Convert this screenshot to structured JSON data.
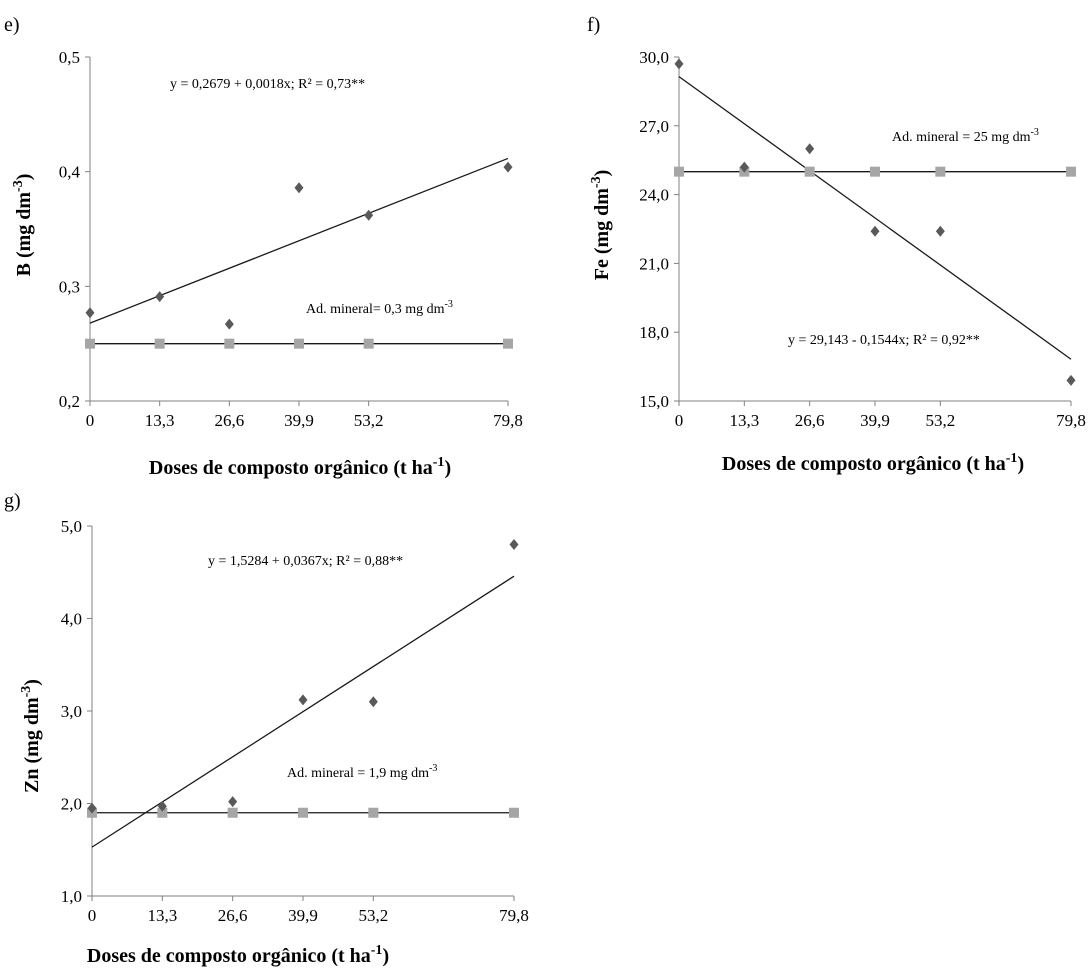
{
  "chart_data": [
    {
      "type": "scatter",
      "panel": "e)",
      "xlabel_main": "Doses de composto orgânico (t ha",
      "xlabel_sup": "-1",
      "xlabel_end": ")",
      "ylabel_main": "B (mg dm",
      "ylabel_sup": "-3",
      "ylabel_end": ")",
      "ylim": [
        0.2,
        0.5
      ],
      "yticks": [
        0.2,
        0.3,
        0.4,
        0.5
      ],
      "yticklabels": [
        "0,2",
        "0,3",
        "0,4",
        "0,5"
      ],
      "xlim": [
        0,
        79.8
      ],
      "xticks": [
        0,
        13.3,
        26.6,
        39.9,
        53.2,
        79.8
      ],
      "xticklabels": [
        "0",
        "13,3",
        "26,6",
        "39,9",
        "53,2",
        "79,8"
      ],
      "series": [
        {
          "marker": "diamond",
          "color": "#595959",
          "x": [
            0,
            13.3,
            26.6,
            39.9,
            53.2,
            79.8
          ],
          "y": [
            0.277,
            0.291,
            0.267,
            0.386,
            0.362,
            0.404
          ]
        },
        {
          "marker": "square",
          "color": "#a6a6a6",
          "x": [
            0,
            13.3,
            26.6,
            39.9,
            53.2,
            79.8
          ],
          "y": [
            0.25,
            0.25,
            0.25,
            0.25,
            0.25,
            0.25
          ]
        }
      ],
      "lines": [
        {
          "intercept": 0.2679,
          "slope": 0.0018
        },
        {
          "intercept": 0.25,
          "slope": 0
        }
      ],
      "annotations": [
        {
          "text": "y = 0,2679 + 0,0018x; R² = 0,73**",
          "sup": ""
        },
        {
          "text": "Ad. mineral= 0,3 mg dm",
          "sup": "-3"
        }
      ]
    },
    {
      "type": "scatter",
      "panel": "f)",
      "xlabel_main": "Doses de composto orgânico (t ha",
      "xlabel_sup": "-1",
      "xlabel_end": ")",
      "ylabel_main": "Fe  (mg dm",
      "ylabel_sup": "-3",
      "ylabel_end": ")",
      "ylim": [
        15,
        30
      ],
      "yticks": [
        15,
        18,
        21,
        24,
        27,
        30
      ],
      "yticklabels": [
        "15,0",
        "18,0",
        "21,0",
        "24,0",
        "27,0",
        "30,0"
      ],
      "xlim": [
        0,
        79.8
      ],
      "xticks": [
        0,
        13.3,
        26.6,
        39.9,
        53.2,
        79.8
      ],
      "xticklabels": [
        "0",
        "13,3",
        "26,6",
        "39,9",
        "53,2",
        "79,8"
      ],
      "series": [
        {
          "marker": "diamond",
          "color": "#595959",
          "x": [
            0,
            13.3,
            26.6,
            39.9,
            53.2,
            79.8
          ],
          "y": [
            29.7,
            25.2,
            26.0,
            22.4,
            22.4,
            15.9
          ]
        },
        {
          "marker": "square",
          "color": "#a6a6a6",
          "x": [
            0,
            13.3,
            26.6,
            39.9,
            53.2,
            79.8
          ],
          "y": [
            25,
            25,
            25,
            25,
            25,
            25
          ]
        }
      ],
      "lines": [
        {
          "intercept": 29.143,
          "slope": -0.1544
        },
        {
          "intercept": 25,
          "slope": 0
        }
      ],
      "annotations": [
        {
          "text": "Ad. mineral = 25 mg dm",
          "sup": "-3"
        },
        {
          "text": "y = 29,143 - 0,1544x; R² = 0,92**",
          "sup": ""
        }
      ]
    },
    {
      "type": "scatter",
      "panel": "g)",
      "xlabel_main": "Doses de composto orgânico (t ha",
      "xlabel_sup": "-1",
      "xlabel_end": ")",
      "ylabel_main": "Zn (mg dm",
      "ylabel_sup": "-3",
      "ylabel_end": ")",
      "ylim": [
        1,
        5
      ],
      "yticks": [
        1,
        2,
        3,
        4,
        5
      ],
      "yticklabels": [
        "1,0",
        "2,0",
        "3,0",
        "4,0",
        "5,0"
      ],
      "xlim": [
        0,
        79.8
      ],
      "xticks": [
        0,
        13.3,
        26.6,
        39.9,
        53.2,
        79.8
      ],
      "xticklabels": [
        "0",
        "13,3",
        "26,6",
        "39,9",
        "53,2",
        "79,8"
      ],
      "series": [
        {
          "marker": "diamond",
          "color": "#595959",
          "x": [
            0,
            13.3,
            26.6,
            39.9,
            53.2,
            79.8
          ],
          "y": [
            1.95,
            1.97,
            2.02,
            3.12,
            3.1,
            4.8
          ]
        },
        {
          "marker": "square",
          "color": "#a6a6a6",
          "x": [
            0,
            13.3,
            26.6,
            39.9,
            53.2,
            79.8
          ],
          "y": [
            1.9,
            1.9,
            1.9,
            1.9,
            1.9,
            1.9
          ]
        }
      ],
      "lines": [
        {
          "intercept": 1.5284,
          "slope": 0.0367
        },
        {
          "intercept": 1.9,
          "slope": 0
        }
      ],
      "annotations": [
        {
          "text": "y = 1,5284 + 0,0367x; R² = 0,88**",
          "sup": ""
        },
        {
          "text": "Ad. mineral =  1,9 mg dm",
          "sup": "-3"
        }
      ]
    }
  ]
}
